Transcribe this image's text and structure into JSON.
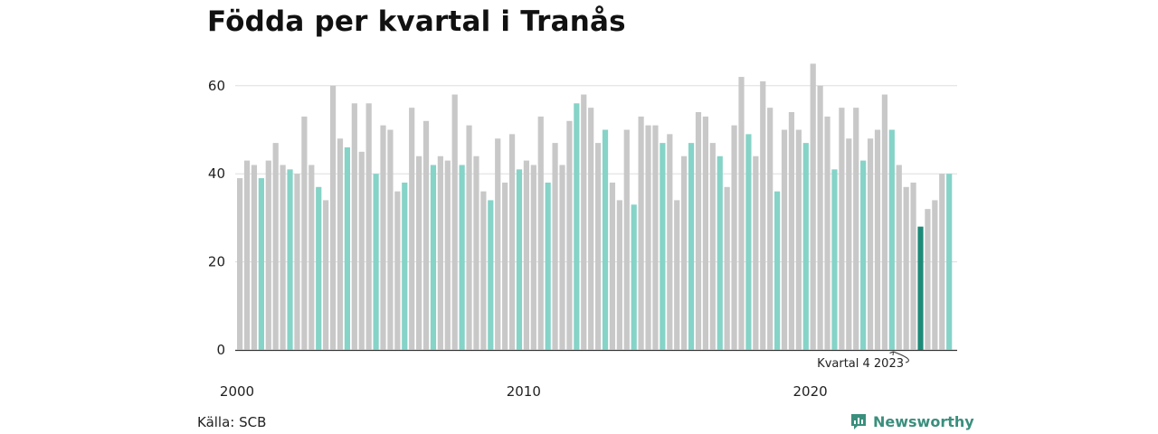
{
  "title": "Födda per kvartal i Tranås",
  "source": "Källa: SCB",
  "brand": {
    "name": "Newsworthy",
    "icon": "bar-chart-icon"
  },
  "colors": {
    "default": "#c8c8c8",
    "quarter4": "#86d3c8",
    "highlight": "#1d8a78",
    "grid": "#dddddd",
    "axis": "#333333",
    "brand": "#3a8f7d"
  },
  "chart_data": {
    "type": "bar",
    "ylim": [
      0,
      66
    ],
    "yticks": [
      0,
      20,
      40,
      60
    ],
    "xticks": [
      "2000",
      "2010",
      "2020"
    ],
    "grid": true,
    "annotation": {
      "text": "Kvartal 4 2023",
      "target_index": 95
    },
    "start_label": "2000 Q1",
    "values": [
      39,
      43,
      42,
      39,
      43,
      47,
      42,
      41,
      40,
      53,
      42,
      37,
      34,
      60,
      48,
      46,
      56,
      45,
      56,
      40,
      51,
      50,
      36,
      38,
      55,
      44,
      52,
      42,
      44,
      43,
      58,
      42,
      51,
      44,
      36,
      34,
      48,
      38,
      49,
      41,
      43,
      42,
      53,
      38,
      47,
      42,
      52,
      56,
      58,
      55,
      47,
      50,
      38,
      34,
      50,
      33,
      53,
      51,
      51,
      47,
      49,
      34,
      44,
      47,
      54,
      53,
      47,
      44,
      37,
      51,
      62,
      49,
      44,
      61,
      55,
      36,
      50,
      54,
      50,
      47,
      65,
      60,
      53,
      41,
      55,
      48,
      55,
      43,
      48,
      50,
      58,
      50,
      42,
      37,
      38,
      28,
      32,
      34,
      40,
      40
    ]
  }
}
